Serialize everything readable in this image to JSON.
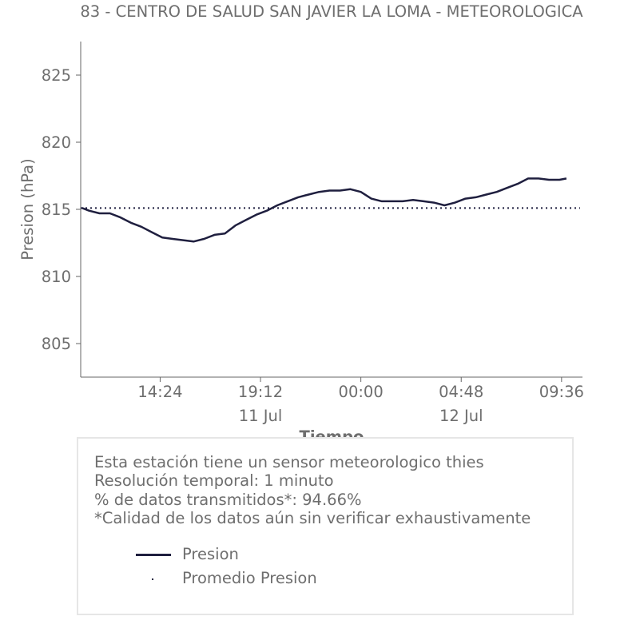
{
  "title": "83 - CENTRO DE SALUD SAN JAVIER LA LOMA - METEOROLOGICA",
  "colors": {
    "series": "#1f1f3f",
    "axis": "#666666",
    "text": "#6e6e6e",
    "box_border": "#e6e6e6"
  },
  "chart_data": {
    "type": "line",
    "ylabel": "Presion (hPa)",
    "xlabel": "Tiempo",
    "ylim": [
      802.5,
      827.5
    ],
    "y_ticks": [
      805,
      810,
      815,
      820,
      825
    ],
    "x_ticks": [
      {
        "label": "14:24",
        "sub": ""
      },
      {
        "label": "19:12",
        "sub": "11 Jul"
      },
      {
        "label": "00:00",
        "sub": ""
      },
      {
        "label": "04:48",
        "sub": "12 Jul"
      },
      {
        "label": "09:36",
        "sub": ""
      }
    ],
    "x_range": [
      "2024-07-11T10:36",
      "2024-07-12T10:36"
    ],
    "average": 815.1,
    "series": [
      {
        "name": "Presion",
        "x": [
          "11 Jul 10:40",
          "11 Jul 11:00",
          "11 Jul 11:30",
          "11 Jul 12:00",
          "11 Jul 12:30",
          "11 Jul 13:00",
          "11 Jul 13:30",
          "11 Jul 14:00",
          "11 Jul 14:30",
          "11 Jul 15:00",
          "11 Jul 15:30",
          "11 Jul 16:00",
          "11 Jul 16:30",
          "11 Jul 17:00",
          "11 Jul 17:30",
          "11 Jul 18:00",
          "11 Jul 18:30",
          "11 Jul 19:00",
          "11 Jul 19:30",
          "11 Jul 20:00",
          "11 Jul 20:30",
          "11 Jul 21:00",
          "11 Jul 21:30",
          "11 Jul 22:00",
          "11 Jul 22:30",
          "11 Jul 23:00",
          "11 Jul 23:30",
          "12 Jul 00:00",
          "12 Jul 00:30",
          "12 Jul 01:00",
          "12 Jul 01:30",
          "12 Jul 02:00",
          "12 Jul 02:30",
          "12 Jul 03:00",
          "12 Jul 03:30",
          "12 Jul 04:00",
          "12 Jul 04:30",
          "12 Jul 05:00",
          "12 Jul 05:30",
          "12 Jul 06:00",
          "12 Jul 06:30",
          "12 Jul 07:00",
          "12 Jul 07:30",
          "12 Jul 08:00",
          "12 Jul 08:30",
          "12 Jul 09:00",
          "12 Jul 09:30",
          "12 Jul 09:50"
        ],
        "values": [
          815.1,
          814.9,
          814.7,
          814.7,
          814.4,
          814.0,
          813.7,
          813.3,
          812.9,
          812.8,
          812.7,
          812.6,
          812.8,
          813.1,
          813.2,
          813.8,
          814.2,
          814.6,
          814.9,
          815.3,
          815.6,
          815.9,
          816.1,
          816.3,
          816.4,
          816.4,
          816.5,
          816.3,
          815.8,
          815.6,
          815.6,
          815.6,
          815.7,
          815.6,
          815.5,
          815.3,
          815.5,
          815.8,
          815.9,
          816.1,
          816.3,
          816.6,
          816.9,
          817.3,
          817.3,
          817.2,
          817.2,
          817.3
        ]
      },
      {
        "name": "Promedio Presion"
      }
    ]
  },
  "info": {
    "line1": "Esta estación tiene un sensor meteorologico thies",
    "line2": "Resolución temporal: 1 minuto",
    "line3": "% de datos transmitidos*: 94.66%",
    "line4": "*Calidad de los datos aún sin verificar exhaustivamente"
  },
  "legend": {
    "item1": "Presion",
    "item2": "Promedio Presion"
  }
}
